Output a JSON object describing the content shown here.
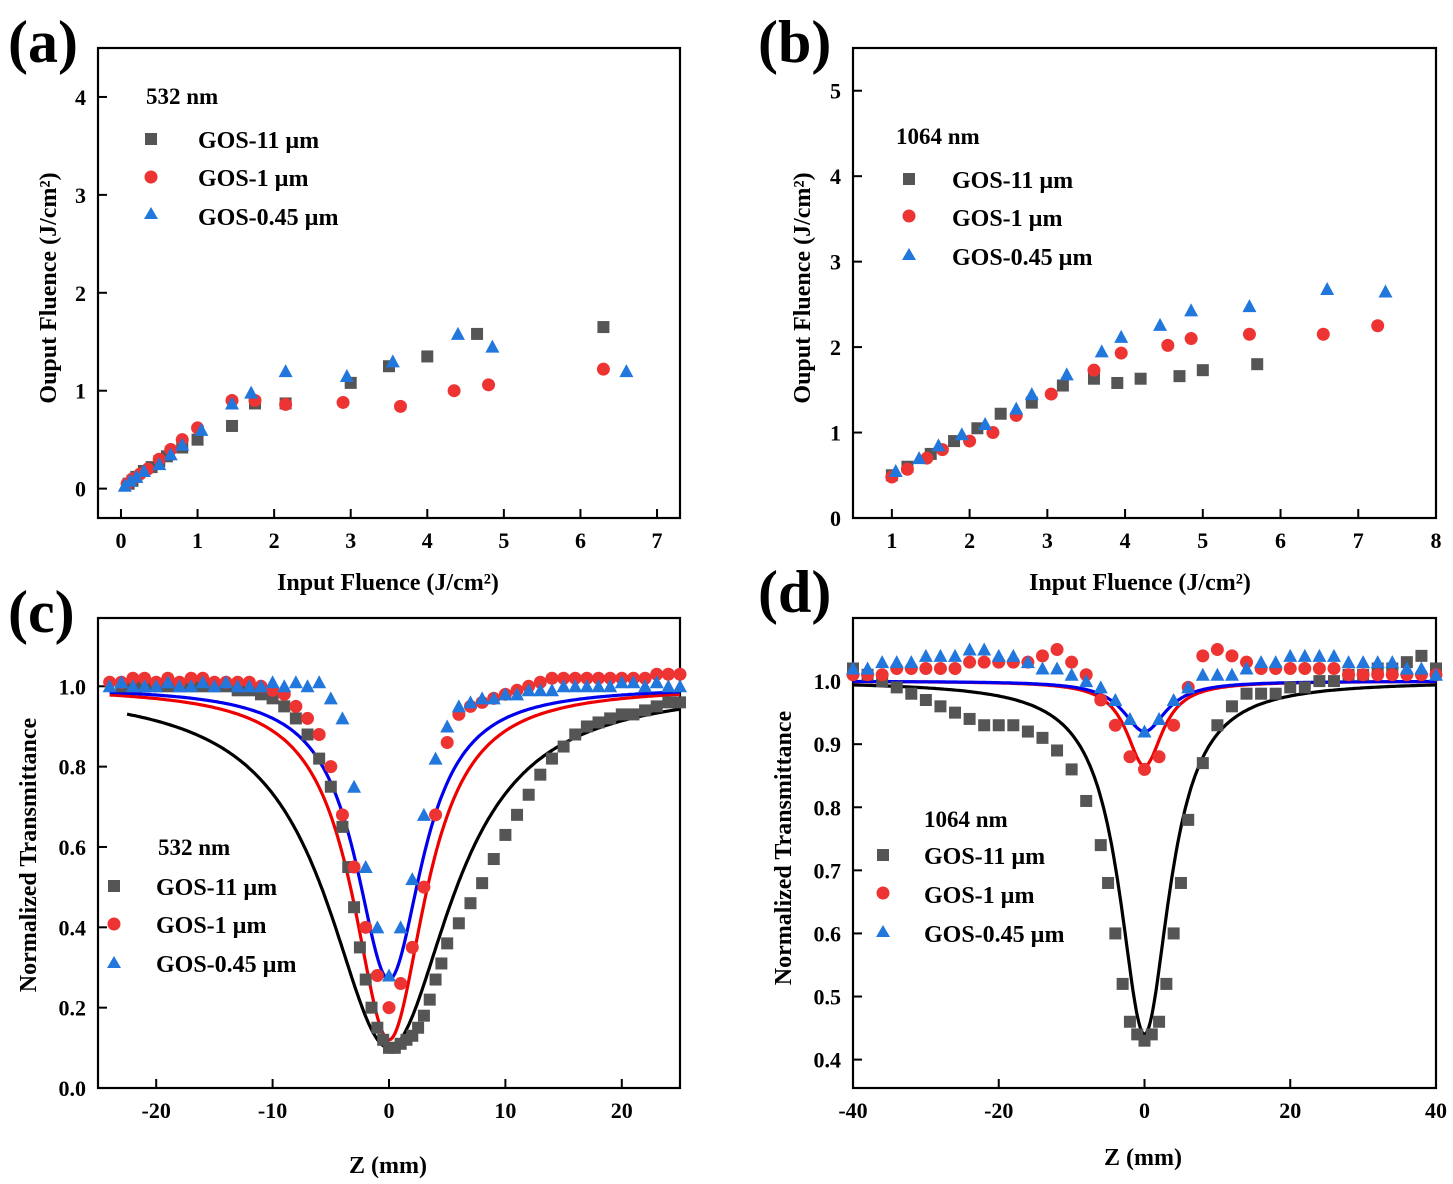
{
  "chart_data": [
    {
      "panel": "(a)",
      "type": "scatter",
      "title": "532 nm",
      "xlabel": "Input Fluence (J/cm²)",
      "ylabel": "Ouput Fluence (J/cm²)",
      "xlim": [
        -0.3,
        7.3
      ],
      "ylim": [
        -0.3,
        4.5
      ],
      "xticks": [
        "0",
        "1",
        "2",
        "3",
        "4",
        "5",
        "6",
        "7"
      ],
      "yticks": [
        "0",
        "1",
        "2",
        "3",
        "4"
      ],
      "series": [
        {
          "name": "GOS-11 µm",
          "color": "#555555",
          "marker": "square",
          "x": [
            0.1,
            0.15,
            0.2,
            0.3,
            0.4,
            0.5,
            0.6,
            0.8,
            1.0,
            1.45,
            1.75,
            2.15,
            3.0,
            3.5,
            4.0,
            4.65,
            6.3
          ],
          "y": [
            0.05,
            0.08,
            0.12,
            0.18,
            0.22,
            0.28,
            0.33,
            0.42,
            0.5,
            0.64,
            0.87,
            0.87,
            1.08,
            1.25,
            1.35,
            1.58,
            1.65
          ]
        },
        {
          "name": "GOS-1 µm",
          "color": "#ee3333",
          "marker": "circle",
          "x": [
            0.08,
            0.15,
            0.25,
            0.35,
            0.5,
            0.65,
            0.8,
            1.0,
            1.45,
            1.75,
            2.15,
            2.9,
            3.65,
            4.35,
            4.8,
            6.3
          ],
          "y": [
            0.05,
            0.1,
            0.15,
            0.2,
            0.3,
            0.4,
            0.5,
            0.62,
            0.9,
            0.9,
            0.86,
            0.88,
            0.84,
            1.0,
            1.06,
            1.22
          ]
        },
        {
          "name": "GOS-0.45 µm",
          "color": "#2277dd",
          "marker": "triangle",
          "x": [
            0.05,
            0.12,
            0.2,
            0.3,
            0.5,
            0.65,
            0.8,
            1.05,
            1.45,
            1.7,
            2.15,
            2.95,
            3.55,
            4.4,
            4.85,
            6.6
          ],
          "y": [
            0.03,
            0.08,
            0.12,
            0.18,
            0.25,
            0.35,
            0.45,
            0.6,
            0.87,
            0.98,
            1.2,
            1.15,
            1.3,
            1.58,
            1.45,
            1.2
          ]
        }
      ]
    },
    {
      "panel": "(b)",
      "type": "scatter",
      "title": "1064 nm",
      "xlabel": "Input Fluence (J/cm²)",
      "ylabel": "Ouput Fluence (J/cm²)",
      "xlim": [
        0.5,
        8.0
      ],
      "ylim": [
        0,
        5.5
      ],
      "xticks": [
        "1",
        "2",
        "3",
        "4",
        "5",
        "6",
        "7",
        "8"
      ],
      "yticks": [
        "0",
        "1",
        "2",
        "3",
        "4",
        "5"
      ],
      "series": [
        {
          "name": "GOS-11 µm",
          "color": "#555555",
          "marker": "square",
          "x": [
            1.0,
            1.2,
            1.5,
            1.8,
            2.1,
            2.4,
            2.8,
            3.2,
            3.6,
            3.9,
            4.2,
            4.7,
            5.0,
            5.7
          ],
          "y": [
            0.5,
            0.6,
            0.75,
            0.9,
            1.05,
            1.22,
            1.35,
            1.55,
            1.63,
            1.58,
            1.63,
            1.66,
            1.73,
            1.8
          ]
        },
        {
          "name": "GOS-1 µm",
          "color": "#ee3333",
          "marker": "circle",
          "x": [
            1.0,
            1.2,
            1.45,
            1.65,
            2.0,
            2.3,
            2.6,
            3.05,
            3.6,
            3.95,
            4.55,
            4.85,
            5.6,
            6.55,
            7.25
          ],
          "y": [
            0.48,
            0.57,
            0.7,
            0.8,
            0.9,
            1.0,
            1.2,
            1.45,
            1.73,
            1.93,
            2.02,
            2.1,
            2.15,
            2.15,
            2.25
          ]
        },
        {
          "name": "GOS-0.45 µm",
          "color": "#2277dd",
          "marker": "triangle",
          "x": [
            1.05,
            1.35,
            1.6,
            1.9,
            2.2,
            2.6,
            2.8,
            3.25,
            3.7,
            3.95,
            4.45,
            4.85,
            5.6,
            6.6,
            7.35
          ],
          "y": [
            0.55,
            0.7,
            0.85,
            0.98,
            1.1,
            1.28,
            1.45,
            1.68,
            1.95,
            2.12,
            2.26,
            2.43,
            2.48,
            2.68,
            2.65
          ]
        }
      ]
    },
    {
      "panel": "(c)",
      "type": "scatter",
      "title": "532 nm",
      "xlabel": "Z (mm)",
      "ylabel": "Normalized Transmittance",
      "xlim": [
        -25,
        25
      ],
      "ylim": [
        0,
        1.17
      ],
      "xticks": [
        "-20",
        "-10",
        "0",
        "10",
        "20"
      ],
      "yticks": [
        "0.0",
        "0.2",
        "0.4",
        "0.6",
        "0.8",
        "1.0"
      ],
      "series": [
        {
          "name": "GOS-11 µm",
          "color": "#555555",
          "marker": "square",
          "x": [
            -23,
            -22,
            -21,
            -20,
            -19,
            -18,
            -17,
            -16,
            -15,
            -14,
            -13,
            -12,
            -11,
            -10,
            -9,
            -8,
            -7,
            -6,
            -5,
            -4,
            -3.5,
            -3,
            -2.5,
            -2,
            -1.5,
            -1,
            -0.5,
            0,
            0.5,
            1,
            1.5,
            2,
            2.5,
            3,
            3.5,
            4,
            4.5,
            5,
            6,
            7,
            8,
            9,
            10,
            11,
            12,
            13,
            14,
            15,
            16,
            17,
            18,
            19,
            20,
            21,
            22,
            23,
            24,
            25
          ],
          "y": [
            1.0,
            1.0,
            1.0,
            1.0,
            1.0,
            1.0,
            1.0,
            1.0,
            1.0,
            1.0,
            0.99,
            0.99,
            0.98,
            0.97,
            0.95,
            0.92,
            0.88,
            0.82,
            0.75,
            0.65,
            0.55,
            0.45,
            0.35,
            0.27,
            0.2,
            0.15,
            0.12,
            0.1,
            0.1,
            0.11,
            0.12,
            0.13,
            0.15,
            0.18,
            0.22,
            0.27,
            0.31,
            0.36,
            0.41,
            0.46,
            0.51,
            0.57,
            0.63,
            0.68,
            0.73,
            0.78,
            0.82,
            0.85,
            0.88,
            0.9,
            0.91,
            0.92,
            0.93,
            0.93,
            0.94,
            0.95,
            0.96,
            0.96
          ]
        },
        {
          "name": "GOS-1 µm",
          "color": "#ee3333",
          "marker": "circle",
          "x": [
            -24,
            -23,
            -22,
            -21,
            -20,
            -19,
            -18,
            -17,
            -16,
            -15,
            -14,
            -13,
            -12,
            -11,
            -10,
            -9,
            -8,
            -7,
            -6,
            -5,
            -4,
            -3,
            -2,
            -1,
            0,
            1,
            2,
            3,
            4,
            5,
            6,
            7,
            8,
            9,
            10,
            11,
            12,
            13,
            14,
            15,
            16,
            17,
            18,
            19,
            20,
            21,
            22,
            23,
            24,
            25
          ],
          "y": [
            1.01,
            1.01,
            1.02,
            1.02,
            1.01,
            1.02,
            1.01,
            1.02,
            1.02,
            1.01,
            1.01,
            1.01,
            1.01,
            1.0,
            0.99,
            0.98,
            0.95,
            0.92,
            0.88,
            0.8,
            0.68,
            0.55,
            0.4,
            0.28,
            0.2,
            0.26,
            0.35,
            0.5,
            0.68,
            0.86,
            0.93,
            0.95,
            0.96,
            0.97,
            0.98,
            0.99,
            1.0,
            1.01,
            1.02,
            1.02,
            1.02,
            1.02,
            1.02,
            1.02,
            1.02,
            1.02,
            1.02,
            1.03,
            1.03,
            1.03
          ]
        },
        {
          "name": "GOS-0.45 µm",
          "color": "#2277dd",
          "marker": "triangle",
          "x": [
            -24,
            -23,
            -22,
            -21,
            -20,
            -19,
            -18,
            -17,
            -16,
            -15,
            -14,
            -13,
            -12,
            -11,
            -10,
            -9,
            -8,
            -7,
            -6,
            -5,
            -4,
            -3,
            -2,
            -1,
            0,
            1,
            2,
            3,
            4,
            5,
            6,
            7,
            8,
            9,
            10,
            11,
            12,
            13,
            14,
            15,
            16,
            17,
            18,
            19,
            20,
            21,
            22,
            23,
            24,
            25
          ],
          "y": [
            1.0,
            1.01,
            1.0,
            1.0,
            1.0,
            1.01,
            1.0,
            1.0,
            1.01,
            1.0,
            1.01,
            1.0,
            1.0,
            1.0,
            1.01,
            1.0,
            1.01,
            1.0,
            1.01,
            0.97,
            0.92,
            0.75,
            0.55,
            0.4,
            0.28,
            0.4,
            0.52,
            0.68,
            0.82,
            0.9,
            0.95,
            0.96,
            0.97,
            0.97,
            0.98,
            0.98,
            0.99,
            0.99,
            0.99,
            1.0,
            1.0,
            1.0,
            1.0,
            1.0,
            1.01,
            1.01,
            1.0,
            1.01,
            1.0,
            1.0
          ]
        }
      ],
      "fits": [
        {
          "name": "GOS-11 fit",
          "color": "#000000",
          "depth": 0.9,
          "width": 6.5,
          "from": -22.5
        },
        {
          "name": "GOS-1 fit",
          "color": "#ee0000",
          "depth": 0.88,
          "width": 3.8,
          "from": -24
        },
        {
          "name": "GOS-0.45 fit",
          "color": "#0000ee",
          "depth": 0.73,
          "width": 3.5,
          "from": -24
        }
      ]
    },
    {
      "panel": "(d)",
      "type": "scatter",
      "title": "1064 nm",
      "xlabel": "Z (mm)",
      "ylabel": "Normalized Transmittance",
      "xlim": [
        -40,
        40
      ],
      "ylim": [
        0.355,
        1.1
      ],
      "xticks": [
        "-40",
        "-20",
        "0",
        "20",
        "40"
      ],
      "yticks": [
        "0.4",
        "0.5",
        "0.6",
        "0.7",
        "0.8",
        "0.9",
        "1.0"
      ],
      "series": [
        {
          "name": "GOS-11 µm",
          "color": "#555555",
          "marker": "square",
          "x": [
            -40,
            -38,
            -36,
            -34,
            -32,
            -30,
            -28,
            -26,
            -24,
            -22,
            -20,
            -18,
            -16,
            -14,
            -12,
            -10,
            -8,
            -6,
            -5,
            -4,
            -3,
            -2,
            -1,
            0,
            1,
            2,
            3,
            4,
            5,
            6,
            8,
            10,
            12,
            14,
            16,
            18,
            20,
            22,
            24,
            26,
            28,
            30,
            32,
            34,
            36,
            38,
            40
          ],
          "y": [
            1.02,
            1.01,
            1.0,
            0.99,
            0.98,
            0.97,
            0.96,
            0.95,
            0.94,
            0.93,
            0.93,
            0.93,
            0.92,
            0.91,
            0.89,
            0.86,
            0.81,
            0.74,
            0.68,
            0.6,
            0.52,
            0.46,
            0.44,
            0.43,
            0.44,
            0.46,
            0.52,
            0.6,
            0.68,
            0.78,
            0.87,
            0.93,
            0.96,
            0.98,
            0.98,
            0.98,
            0.99,
            0.99,
            1.0,
            1.0,
            1.01,
            1.01,
            1.02,
            1.02,
            1.03,
            1.04,
            1.02
          ]
        },
        {
          "name": "GOS-1 µm",
          "color": "#ee3333",
          "marker": "circle",
          "x": [
            -40,
            -38,
            -36,
            -34,
            -32,
            -30,
            -28,
            -26,
            -24,
            -22,
            -20,
            -18,
            -16,
            -14,
            -12,
            -10,
            -8,
            -6,
            -4,
            -2,
            0,
            2,
            4,
            6,
            8,
            10,
            12,
            14,
            16,
            18,
            20,
            22,
            24,
            26,
            28,
            30,
            32,
            34,
            36,
            38,
            40
          ],
          "y": [
            1.01,
            1.01,
            1.01,
            1.02,
            1.02,
            1.02,
            1.02,
            1.02,
            1.03,
            1.03,
            1.03,
            1.03,
            1.03,
            1.04,
            1.05,
            1.03,
            1.01,
            0.97,
            0.93,
            0.88,
            0.86,
            0.88,
            0.93,
            0.99,
            1.04,
            1.05,
            1.04,
            1.03,
            1.02,
            1.02,
            1.02,
            1.02,
            1.02,
            1.02,
            1.01,
            1.01,
            1.01,
            1.01,
            1.01,
            1.01,
            1.01
          ]
        },
        {
          "name": "GOS-0.45 µm",
          "color": "#2277dd",
          "marker": "triangle",
          "x": [
            -40,
            -38,
            -36,
            -34,
            -32,
            -30,
            -28,
            -26,
            -24,
            -22,
            -20,
            -18,
            -16,
            -14,
            -12,
            -10,
            -8,
            -6,
            -4,
            -2,
            0,
            2,
            4,
            6,
            8,
            10,
            12,
            14,
            16,
            18,
            20,
            22,
            24,
            26,
            28,
            30,
            32,
            34,
            36,
            38,
            40
          ],
          "y": [
            1.02,
            1.02,
            1.03,
            1.03,
            1.03,
            1.04,
            1.04,
            1.04,
            1.05,
            1.05,
            1.04,
            1.04,
            1.03,
            1.02,
            1.02,
            1.01,
            1.0,
            0.99,
            0.97,
            0.94,
            0.92,
            0.94,
            0.97,
            0.99,
            1.01,
            1.01,
            1.01,
            1.02,
            1.03,
            1.03,
            1.04,
            1.04,
            1.04,
            1.04,
            1.03,
            1.03,
            1.03,
            1.03,
            1.02,
            1.02,
            1.01
          ]
        }
      ],
      "fits": [
        {
          "name": "GOS-11 fit",
          "color": "#000000",
          "depth": 0.56,
          "width": 4.2,
          "from": -40
        },
        {
          "name": "GOS-1 fit",
          "color": "#ee0000",
          "depth": 0.135,
          "width": 3.0,
          "from": -40
        },
        {
          "name": "GOS-0.45 fit",
          "color": "#0000ee",
          "depth": 0.08,
          "width": 3.6,
          "from": -40
        }
      ]
    }
  ]
}
